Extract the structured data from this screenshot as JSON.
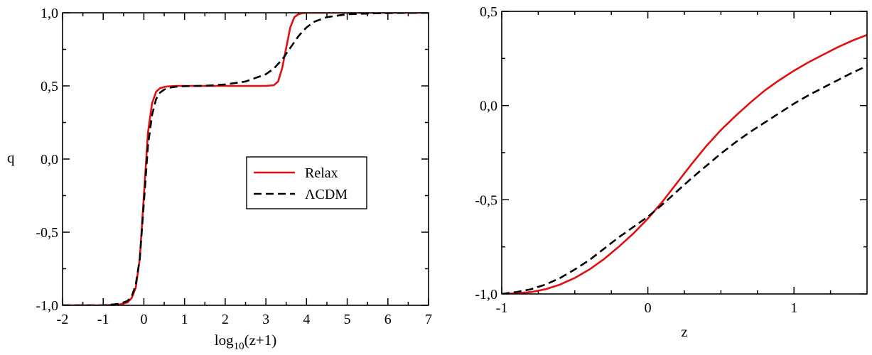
{
  "chart_data": [
    {
      "type": "line",
      "xlabel": "log10(z+1)",
      "xlabel_parts": {
        "main": "log",
        "sub": "10",
        "rest": "(z+1)"
      },
      "ylabel": "q",
      "xlim": [
        -2,
        7
      ],
      "ylim": [
        -1.0,
        1.0
      ],
      "xticks": [
        {
          "v": -2,
          "label": "-2"
        },
        {
          "v": -1,
          "label": "-1"
        },
        {
          "v": 0,
          "label": "0"
        },
        {
          "v": 1,
          "label": "1"
        },
        {
          "v": 2,
          "label": "2"
        },
        {
          "v": 3,
          "label": "3"
        },
        {
          "v": 4,
          "label": "4"
        },
        {
          "v": 5,
          "label": "5"
        },
        {
          "v": 6,
          "label": "6"
        },
        {
          "v": 7,
          "label": "7"
        }
      ],
      "yticks": [
        {
          "v": -1.0,
          "label": "-1,0"
        },
        {
          "v": -0.5,
          "label": "-0,5"
        },
        {
          "v": 0.0,
          "label": "0,0"
        },
        {
          "v": 0.5,
          "label": "0,5"
        },
        {
          "v": 1.0,
          "label": "1,0"
        }
      ],
      "legend_position": "center-right",
      "series": [
        {
          "name": "Relax",
          "color": "#e01010",
          "dash": "solid",
          "x": [
            -2.0,
            -1.0,
            -0.6,
            -0.4,
            -0.3,
            -0.2,
            -0.1,
            0.0,
            0.1,
            0.2,
            0.3,
            0.4,
            0.5,
            0.6,
            0.8,
            1.0,
            2.0,
            3.0,
            3.2,
            3.3,
            3.4,
            3.5,
            3.6,
            3.7,
            3.8,
            3.9,
            4.0,
            5.0,
            6.0,
            7.0
          ],
          "y": [
            -1.0,
            -1.0,
            -0.995,
            -0.98,
            -0.95,
            -0.88,
            -0.68,
            -0.25,
            0.18,
            0.38,
            0.46,
            0.485,
            0.493,
            0.497,
            0.5,
            0.5,
            0.5,
            0.5,
            0.505,
            0.53,
            0.62,
            0.76,
            0.9,
            0.97,
            0.99,
            0.998,
            1.0,
            1.0,
            1.0,
            1.0
          ]
        },
        {
          "name": "ΛCDM",
          "color": "#000000",
          "dash": "dashed",
          "x": [
            -2.0,
            -1.0,
            -0.6,
            -0.4,
            -0.3,
            -0.2,
            -0.1,
            0.0,
            0.1,
            0.2,
            0.3,
            0.4,
            0.5,
            0.6,
            0.8,
            1.0,
            1.5,
            2.0,
            2.5,
            3.0,
            3.2,
            3.4,
            3.6,
            3.8,
            4.0,
            4.2,
            4.5,
            5.0,
            5.5,
            6.0,
            7.0
          ],
          "y": [
            -1.0,
            -1.0,
            -0.99,
            -0.97,
            -0.94,
            -0.86,
            -0.68,
            -0.3,
            0.09,
            0.3,
            0.41,
            0.455,
            0.475,
            0.487,
            0.495,
            0.498,
            0.501,
            0.51,
            0.53,
            0.58,
            0.62,
            0.68,
            0.76,
            0.84,
            0.9,
            0.94,
            0.97,
            0.99,
            0.995,
            0.998,
            1.0
          ]
        }
      ],
      "legend_entries": [
        {
          "label": "Relax",
          "color": "#e01010",
          "dash": "solid"
        },
        {
          "label": "ΛCDM",
          "color": "#000000",
          "dash": "dashed"
        }
      ]
    },
    {
      "type": "line",
      "xlabel": "z",
      "ylabel": "",
      "xlim": [
        -1,
        1.5
      ],
      "ylim": [
        -1.0,
        0.5
      ],
      "xticks": [
        {
          "v": -1,
          "label": "-1"
        },
        {
          "v": 0,
          "label": "0"
        },
        {
          "v": 1,
          "label": "1"
        }
      ],
      "yticks": [
        {
          "v": -1.0,
          "label": "-1,0"
        },
        {
          "v": -0.5,
          "label": "-0,5"
        },
        {
          "v": 0.0,
          "label": "0,0"
        },
        {
          "v": 0.5,
          "label": "0,5"
        }
      ],
      "series": [
        {
          "name": "Relax",
          "color": "#e01010",
          "dash": "solid",
          "x": [
            -1.0,
            -0.9,
            -0.8,
            -0.7,
            -0.6,
            -0.5,
            -0.4,
            -0.3,
            -0.2,
            -0.1,
            0.0,
            0.1,
            0.2,
            0.3,
            0.4,
            0.5,
            0.6,
            0.7,
            0.8,
            0.9,
            1.0,
            1.1,
            1.2,
            1.3,
            1.4,
            1.5
          ],
          "y": [
            -1.0,
            -0.997,
            -0.99,
            -0.975,
            -0.95,
            -0.915,
            -0.87,
            -0.815,
            -0.75,
            -0.68,
            -0.6,
            -0.51,
            -0.41,
            -0.31,
            -0.215,
            -0.13,
            -0.055,
            0.015,
            0.08,
            0.135,
            0.185,
            0.23,
            0.27,
            0.31,
            0.345,
            0.375
          ]
        },
        {
          "name": "ΛCDM",
          "color": "#000000",
          "dash": "dashed",
          "x": [
            -1.0,
            -0.9,
            -0.8,
            -0.7,
            -0.6,
            -0.5,
            -0.4,
            -0.3,
            -0.2,
            -0.1,
            0.0,
            0.1,
            0.2,
            0.3,
            0.4,
            0.5,
            0.6,
            0.7,
            0.8,
            0.9,
            1.0,
            1.1,
            1.2,
            1.3,
            1.4,
            1.5
          ],
          "y": [
            -1.0,
            -0.99,
            -0.975,
            -0.95,
            -0.915,
            -0.87,
            -0.82,
            -0.76,
            -0.7,
            -0.645,
            -0.59,
            -0.525,
            -0.455,
            -0.385,
            -0.32,
            -0.255,
            -0.195,
            -0.14,
            -0.09,
            -0.04,
            0.01,
            0.055,
            0.095,
            0.135,
            0.175,
            0.21
          ]
        }
      ]
    }
  ]
}
